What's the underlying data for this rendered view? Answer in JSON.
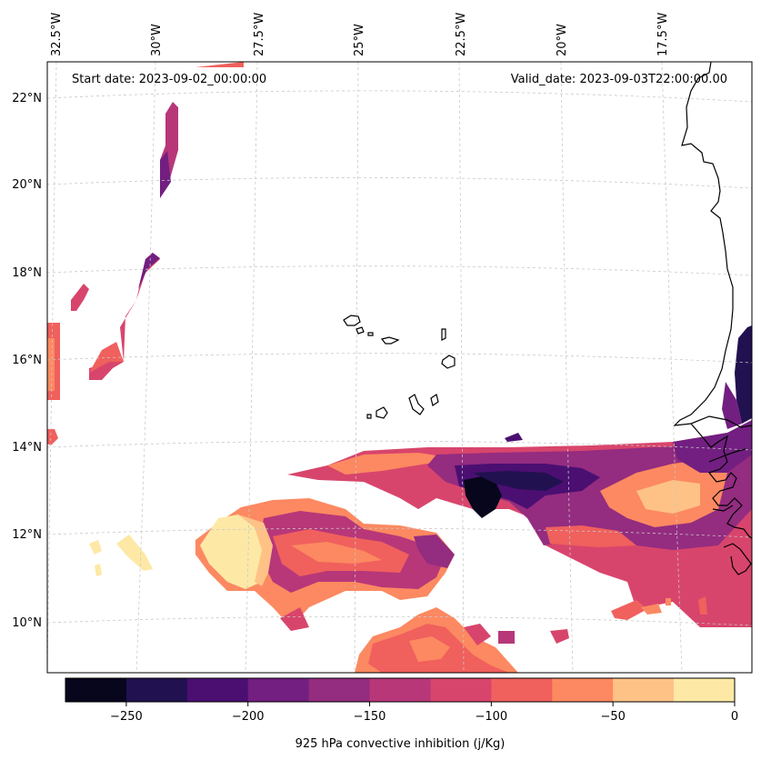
{
  "map": {
    "start_date_label": "Start date: 2023-09-02_00:00:00",
    "valid_date_label": "Valid_date: 2023-09-03T22:00:00.00",
    "longitude_labels": [
      "32.5°W",
      "30°W",
      "27.5°W",
      "25°W",
      "22.5°W",
      "20°W",
      "17.5°W"
    ],
    "latitude_labels": [
      "22°N",
      "20°N",
      "18°N",
      "16°N",
      "14°N",
      "12°N",
      "10°N"
    ],
    "variable": "925 hPa convective inhibition"
  },
  "colorbar": {
    "label": "925 hPa convective inhibition (j/Kg)",
    "range": [
      -275,
      0
    ],
    "tick_values": [
      -250,
      -200,
      -150,
      -100,
      -50,
      0
    ],
    "tick_labels": [
      "−250",
      "−200",
      "−150",
      "−100",
      "−50",
      "0"
    ],
    "levels": [
      -275,
      -250,
      -225,
      -200,
      -175,
      -150,
      -125,
      -100,
      -75,
      -50,
      -25,
      0
    ],
    "colors": [
      "#07061c",
      "#221150",
      "#4b0f72",
      "#721f81",
      "#942c80",
      "#b73779",
      "#d8456c",
      "#f0605d",
      "#fc8961",
      "#fec287",
      "#fde9a5"
    ]
  }
}
